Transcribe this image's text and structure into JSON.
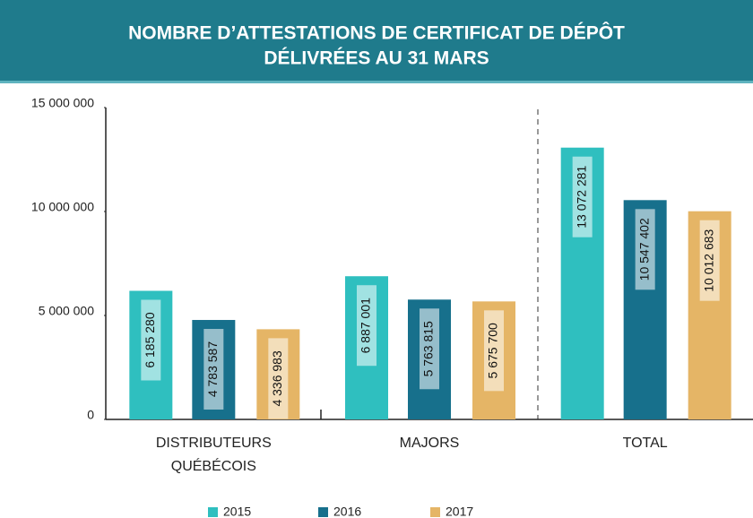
{
  "chart_data": {
    "type": "bar",
    "title": [
      "NOMBRE D’ATTESTATIONS DE CERTIFICAT DE DÉPÔT",
      "DÉLIVRÉES AU 31 MARS"
    ],
    "categories": [
      "DISTRIBUTEURS QUÉBÉCOIS",
      "MAJORS",
      "TOTAL"
    ],
    "series": [
      {
        "name": "2015",
        "color": "#2fbfbf",
        "values": [
          6185280,
          6887001,
          13072281
        ],
        "value_labels": [
          "6 185 280",
          "6 887 001",
          "13 072 281"
        ]
      },
      {
        "name": "2016",
        "color": "#17708c",
        "values": [
          4783587,
          5763815,
          10547402
        ],
        "value_labels": [
          "4 783 587",
          "5 763 815",
          "10 547 402"
        ]
      },
      {
        "name": "2017",
        "color": "#e5b566",
        "values": [
          4336983,
          5675700,
          10012683
        ],
        "value_labels": [
          "4 336 983",
          "5 675 700",
          "10 012 683"
        ]
      }
    ],
    "ylim": [
      0,
      15000000
    ],
    "yticks": [
      0,
      {
        "value": 5000000,
        "label": "5 000 000"
      },
      {
        "value": 10000000,
        "label": "10 000 000"
      },
      {
        "value": 15000000,
        "label": "15 000 000"
      }
    ]
  }
}
